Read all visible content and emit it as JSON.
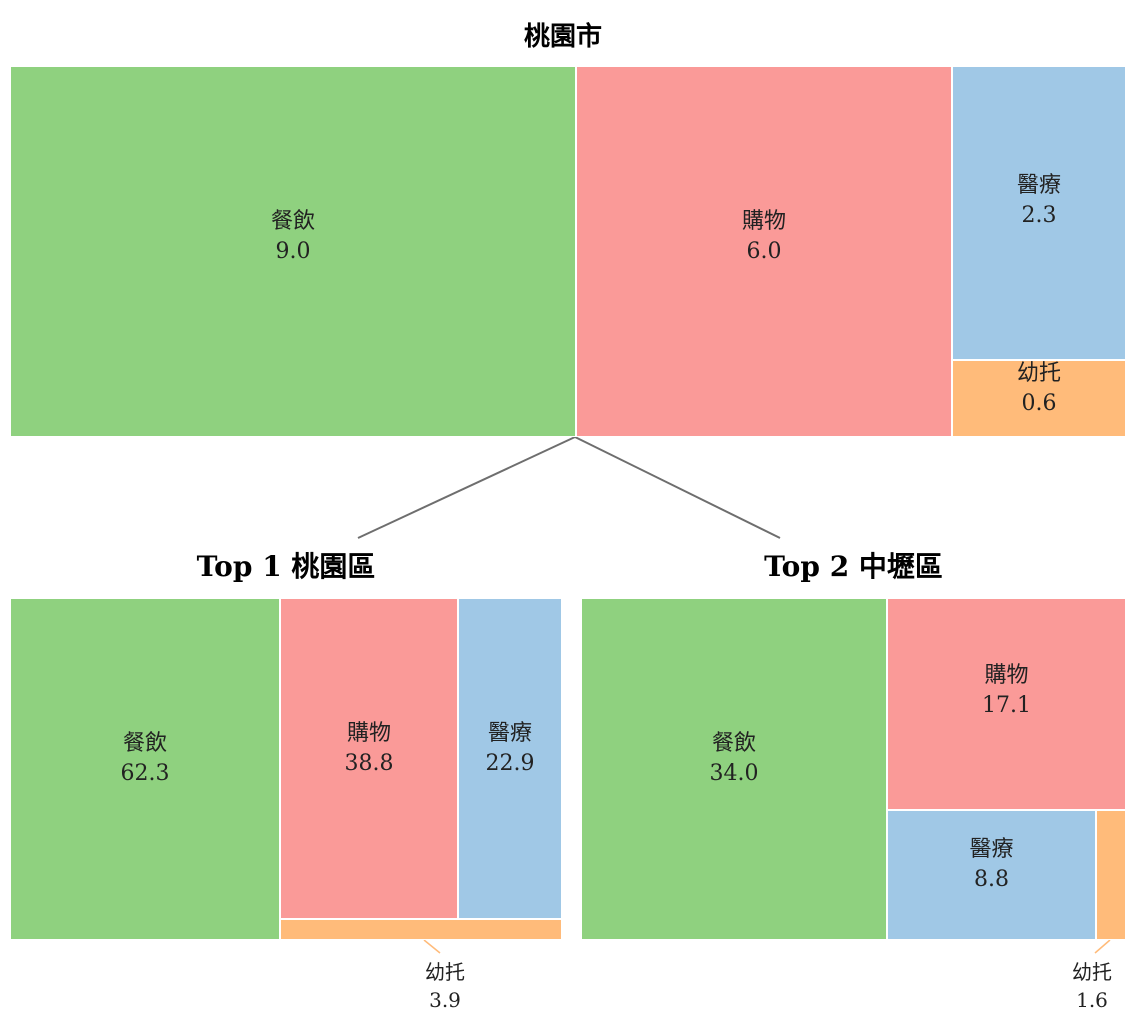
{
  "chart_data": [
    {
      "type": "treemap",
      "title": "桃園市",
      "items": [
        {
          "name": "餐飲",
          "value": 9.0,
          "value_label": "9.0",
          "color": "#8fd17f"
        },
        {
          "name": "購物",
          "value": 6.0,
          "value_label": "6.0",
          "color": "#fa9a98"
        },
        {
          "name": "醫療",
          "value": 2.3,
          "value_label": "2.3",
          "color": "#a0c8e6"
        },
        {
          "name": "幼托",
          "value": 0.6,
          "value_label": "0.6",
          "color": "#ffbb7a"
        }
      ]
    },
    {
      "type": "treemap",
      "title": "Top 1 桃園區",
      "items": [
        {
          "name": "餐飲",
          "value": 62.3,
          "value_label": "62.3",
          "color": "#8fd17f"
        },
        {
          "name": "購物",
          "value": 38.8,
          "value_label": "38.8",
          "color": "#fa9a98"
        },
        {
          "name": "醫療",
          "value": 22.9,
          "value_label": "22.9",
          "color": "#a0c8e6"
        },
        {
          "name": "幼托",
          "value": 3.9,
          "value_label": "3.9",
          "color": "#ffbb7a"
        }
      ]
    },
    {
      "type": "treemap",
      "title": "Top 2 中壢區",
      "items": [
        {
          "name": "餐飲",
          "value": 34.0,
          "value_label": "34.0",
          "color": "#8fd17f"
        },
        {
          "name": "購物",
          "value": 17.1,
          "value_label": "17.1",
          "color": "#fa9a98"
        },
        {
          "name": "醫療",
          "value": 8.8,
          "value_label": "8.8",
          "color": "#a0c8e6"
        },
        {
          "name": "幼托",
          "value": 1.6,
          "value_label": "1.6",
          "color": "#ffbb7a"
        }
      ]
    }
  ]
}
